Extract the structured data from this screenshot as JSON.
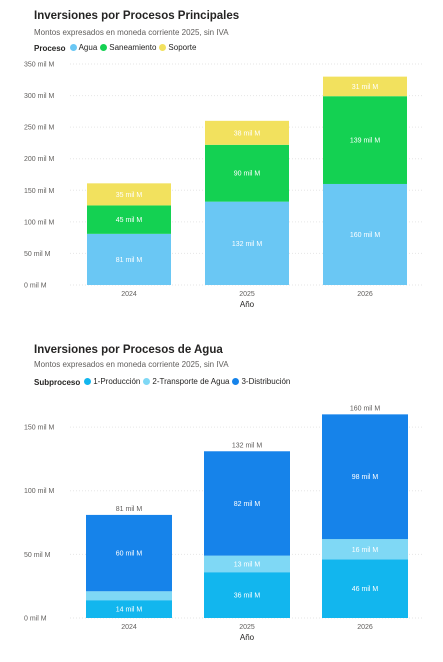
{
  "charts": [
    {
      "title": "Inversiones por Procesos Principales",
      "subtitle": "Montos expresados en moneda corriente 2025, sin IVA",
      "legend_title": "Proceso"
    },
    {
      "title": "Inversiones por Procesos de Agua",
      "subtitle": "Montos expresados en moneda corriente 2025, sin IVA",
      "legend_title": "Subproceso"
    }
  ],
  "chart_data": [
    {
      "type": "bar",
      "stacked": true,
      "categories": [
        "2024",
        "2025",
        "2026"
      ],
      "series": [
        {
          "name": "Agua",
          "color": "#6ac7f4",
          "values": [
            81,
            132,
            160
          ],
          "labels": [
            "81 mil M",
            "132 mil M",
            "160 mil M"
          ]
        },
        {
          "name": "Saneamiento",
          "color": "#14d152",
          "values": [
            45,
            90,
            139
          ],
          "labels": [
            "45 mil M",
            "90 mil M",
            "139 mil M"
          ]
        },
        {
          "name": "Soporte",
          "color": "#f2e15e",
          "values": [
            35,
            38,
            31
          ],
          "labels": [
            "35 mil M",
            "38 mil M",
            "31 mil M"
          ]
        }
      ],
      "totals": [],
      "y_ticks": [
        0,
        50,
        100,
        150,
        200,
        250,
        300,
        350
      ],
      "y_tick_labels": [
        "0 mil M",
        "50 mil M",
        "100 mil M",
        "150 mil M",
        "200 mil M",
        "250 mil M",
        "300 mil M",
        "350 mil M"
      ],
      "ylim": [
        0,
        350
      ],
      "xlabel": "Año",
      "ylabel": "",
      "grid": true,
      "legend_position": "top-left"
    },
    {
      "type": "bar",
      "stacked": true,
      "categories": [
        "2024",
        "2025",
        "2026"
      ],
      "series": [
        {
          "name": "1-Producción",
          "color": "#12b6ee",
          "values": [
            14,
            36,
            46
          ],
          "labels": [
            "14 mil M",
            "36 mil M",
            "46 mil M"
          ]
        },
        {
          "name": "2-Transporte de Agua",
          "color": "#7fd8f5",
          "values": [
            7,
            13,
            16
          ],
          "labels": [
            "",
            "13 mil M",
            "16 mil M"
          ]
        },
        {
          "name": "3-Distribución",
          "color": "#1683ea",
          "values": [
            60,
            82,
            98
          ],
          "labels": [
            "60 mil M",
            "82 mil M",
            "98 mil M"
          ]
        }
      ],
      "totals": [
        "81 mil M",
        "132 mil M",
        "160 mil M"
      ],
      "y_ticks": [
        0,
        50,
        100,
        150
      ],
      "y_tick_labels": [
        "0 mil M",
        "50 mil M",
        "100 mil M",
        "150 mil M"
      ],
      "ylim": [
        0,
        165
      ],
      "xlabel": "Año",
      "ylabel": "",
      "grid": true,
      "legend_position": "top-left"
    }
  ]
}
